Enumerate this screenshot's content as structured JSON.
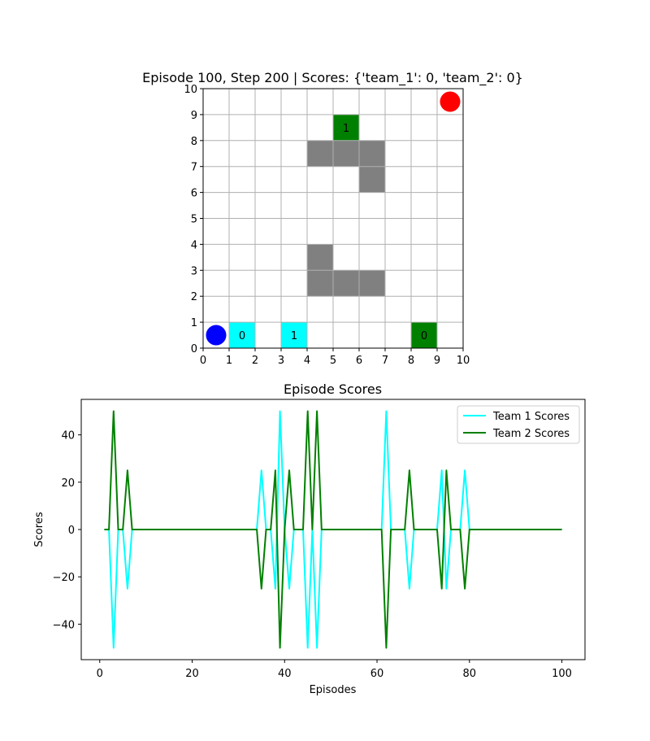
{
  "chart_data": [
    {
      "type": "grid",
      "title": "Episode 100, Step 200 | Scores: {'team_1': 0, 'team_2': 0}",
      "xlim": [
        0,
        10
      ],
      "ylim": [
        0,
        10
      ],
      "xticks": [
        "0",
        "1",
        "2",
        "3",
        "4",
        "5",
        "6",
        "7",
        "8",
        "9",
        "10"
      ],
      "yticks": [
        "0",
        "1",
        "2",
        "3",
        "4",
        "5",
        "6",
        "7",
        "8",
        "9",
        "10"
      ],
      "grid": true,
      "obstacles": [
        [
          4,
          7
        ],
        [
          5,
          7
        ],
        [
          6,
          7
        ],
        [
          6,
          6
        ],
        [
          4,
          3
        ],
        [
          4,
          2
        ],
        [
          5,
          2
        ],
        [
          6,
          2
        ]
      ],
      "obstacle_color": "#808080",
      "agents": [
        {
          "team": "team_1",
          "x": 1,
          "y": 0,
          "label": "0",
          "color": "#00ffff"
        },
        {
          "team": "team_1",
          "x": 3,
          "y": 0,
          "label": "1",
          "color": "#00ffff"
        },
        {
          "team": "team_2",
          "x": 8,
          "y": 0,
          "label": "0",
          "color": "#008000"
        },
        {
          "team": "team_2",
          "x": 5,
          "y": 8,
          "label": "1",
          "color": "#008000"
        }
      ],
      "bases": [
        {
          "x": 0.5,
          "y": 0.5,
          "color": "#0000ff"
        },
        {
          "x": 9.5,
          "y": 9.5,
          "color": "#ff0000"
        }
      ]
    },
    {
      "type": "line",
      "title": "Episode Scores",
      "xlabel": "Episodes",
      "ylabel": "Scores",
      "xlim": [
        -4,
        105
      ],
      "ylim": [
        -55,
        55
      ],
      "xticks": [
        0,
        20,
        40,
        60,
        80,
        100
      ],
      "yticks": [
        -40,
        -20,
        0,
        20,
        40
      ],
      "ytick_labels": [
        "−40",
        "−20",
        "0",
        "20",
        "40"
      ],
      "grid": false,
      "legend_position": "top-right",
      "series": [
        {
          "name": "Team 1 Scores",
          "color": "#00ffff",
          "x": [
            1,
            2,
            3,
            4,
            5,
            6,
            7,
            34,
            35,
            36,
            37,
            38,
            39,
            40,
            41,
            42,
            43,
            44,
            45,
            46,
            47,
            48,
            61,
            62,
            63,
            64,
            65,
            66,
            67,
            68,
            69,
            73,
            74,
            75,
            76,
            77,
            78,
            79,
            80,
            100
          ],
          "values": [
            0,
            0,
            -50,
            0,
            0,
            -25,
            0,
            0,
            25,
            0,
            0,
            -25,
            50,
            0,
            -25,
            0,
            0,
            0,
            -50,
            0,
            -50,
            0,
            0,
            50,
            0,
            0,
            0,
            0,
            -25,
            0,
            0,
            0,
            25,
            -25,
            0,
            0,
            0,
            25,
            0,
            0
          ]
        },
        {
          "name": "Team 2 Scores",
          "color": "#008000",
          "x": [
            1,
            2,
            3,
            4,
            5,
            6,
            7,
            34,
            35,
            36,
            37,
            38,
            39,
            40,
            41,
            42,
            43,
            44,
            45,
            46,
            47,
            48,
            61,
            62,
            63,
            64,
            65,
            66,
            67,
            68,
            69,
            73,
            74,
            75,
            76,
            77,
            78,
            79,
            80,
            100
          ],
          "values": [
            0,
            0,
            50,
            0,
            0,
            25,
            0,
            0,
            -25,
            0,
            0,
            25,
            -50,
            0,
            25,
            0,
            0,
            0,
            50,
            0,
            50,
            0,
            0,
            -50,
            0,
            0,
            0,
            0,
            25,
            0,
            0,
            0,
            -25,
            25,
            0,
            0,
            0,
            -25,
            0,
            0
          ]
        }
      ]
    }
  ]
}
